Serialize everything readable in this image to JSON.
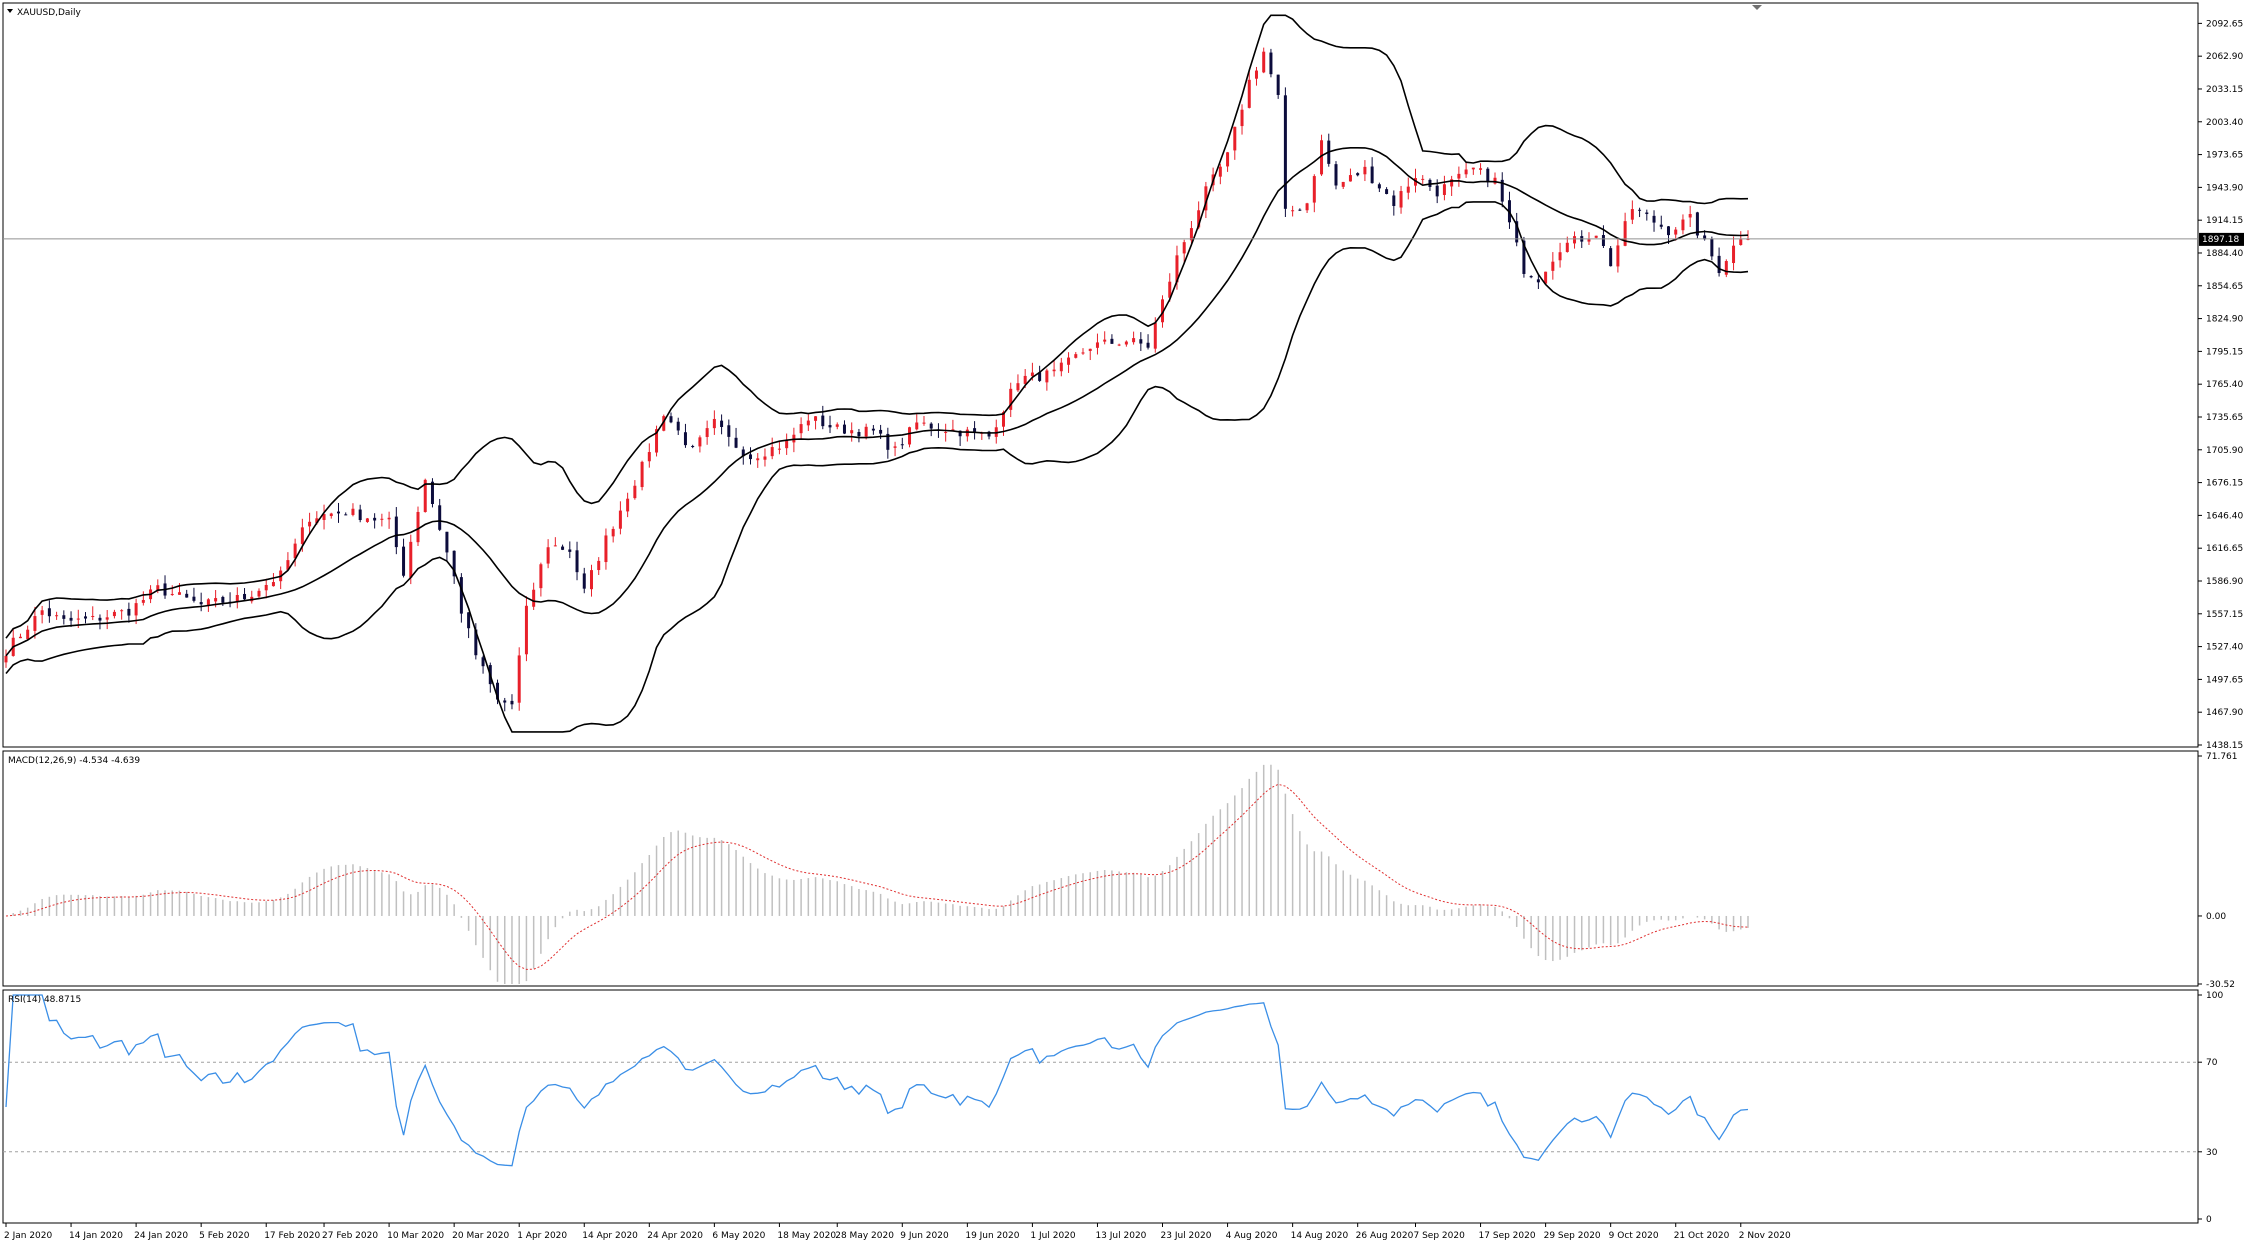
{
  "window": {
    "title": "XAUUSD,Daily",
    "current_price_label": "1897.18",
    "current_price": 1897.18
  },
  "colors": {
    "bull_candle": "#e8202a",
    "bear_candle": "#0c0c3c",
    "bands": "#000000",
    "macd_hist": "#c0c0c0",
    "macd_signal": "#e03030",
    "rsi_line": "#3a8ee6",
    "levels": "#a0a0a0"
  },
  "price_axis": {
    "ticks": [
      "2092.65",
      "2062.90",
      "2033.15",
      "2003.40",
      "1973.65",
      "1943.90",
      "1914.15",
      "1884.40",
      "1854.65",
      "1824.90",
      "1795.15",
      "1765.40",
      "1735.65",
      "1705.90",
      "1676.15",
      "1646.40",
      "1616.65",
      "1586.90",
      "1557.15",
      "1527.40",
      "1497.65",
      "1467.90",
      "1438.15"
    ]
  },
  "macd_panel": {
    "label": "MACD(12,26,9) -4.534 -4.639",
    "ticks": [
      "71.761",
      "0.00",
      "-30.52"
    ]
  },
  "rsi_panel": {
    "label": "RSI(14) 48.8715",
    "ticks": [
      "100",
      "70",
      "30",
      "0"
    ]
  },
  "date_axis": {
    "labels": [
      "2 Jan 2020",
      "14 Jan 2020",
      "24 Jan 2020",
      "5 Feb 2020",
      "17 Feb 2020",
      "27 Feb 2020",
      "10 Mar 2020",
      "20 Mar 2020",
      "1 Apr 2020",
      "14 Apr 2020",
      "24 Apr 2020",
      "6 May 2020",
      "18 May 2020",
      "28 May 2020",
      "9 Jun 2020",
      "19 Jun 2020",
      "1 Jul 2020",
      "13 Jul 2020",
      "23 Jul 2020",
      "4 Aug 2020",
      "14 Aug 2020",
      "26 Aug 2020",
      "7 Sep 2020",
      "17 Sep 2020",
      "29 Sep 2020",
      "9 Oct 2020",
      "21 Oct 2020",
      "2 Nov 2020"
    ]
  },
  "chart_data": [
    {
      "type": "candlestick",
      "title": "XAUUSD,Daily",
      "ylim": [
        1438.15,
        2107.5
      ],
      "close_path": [
        [
          0,
          1524
        ],
        [
          5,
          1560
        ],
        [
          8,
          1550
        ],
        [
          12,
          1552
        ],
        [
          17,
          1560
        ],
        [
          21,
          1580
        ],
        [
          27,
          1565
        ],
        [
          33,
          1572
        ],
        [
          38,
          1592
        ],
        [
          42,
          1645
        ],
        [
          47,
          1650
        ],
        [
          53,
          1640
        ],
        [
          55,
          1595
        ],
        [
          58,
          1680
        ],
        [
          62,
          1590
        ],
        [
          63,
          1560
        ],
        [
          65,
          1520
        ],
        [
          68,
          1478
        ],
        [
          70,
          1475
        ],
        [
          72,
          1560
        ],
        [
          75,
          1620
        ],
        [
          78,
          1615
        ],
        [
          80,
          1577
        ],
        [
          83,
          1625
        ],
        [
          86,
          1665
        ],
        [
          88,
          1690
        ],
        [
          91,
          1740
        ],
        [
          95,
          1705
        ],
        [
          98,
          1730
        ],
        [
          100,
          1715
        ],
        [
          103,
          1700
        ],
        [
          108,
          1712
        ],
        [
          111,
          1735
        ],
        [
          115,
          1725
        ],
        [
          120,
          1722
        ],
        [
          123,
          1705
        ],
        [
          126,
          1730
        ],
        [
          130,
          1725
        ],
        [
          136,
          1718
        ],
        [
          140,
          1770
        ],
        [
          145,
          1775
        ],
        [
          150,
          1800
        ],
        [
          155,
          1805
        ],
        [
          158,
          1800
        ],
        [
          162,
          1880
        ],
        [
          166,
          1940
        ],
        [
          169,
          1972
        ],
        [
          172,
          2040
        ],
        [
          174,
          2067
        ],
        [
          176,
          2025
        ],
        [
          177,
          1920
        ],
        [
          180,
          1930
        ],
        [
          182,
          1985
        ],
        [
          184,
          1945
        ],
        [
          188,
          1960
        ],
        [
          192,
          1930
        ],
        [
          195,
          1955
        ],
        [
          198,
          1940
        ],
        [
          203,
          1960
        ],
        [
          206,
          1950
        ],
        [
          209,
          1890
        ],
        [
          210,
          1870
        ],
        [
          212,
          1862
        ],
        [
          215,
          1890
        ],
        [
          220,
          1903
        ],
        [
          222,
          1875
        ],
        [
          225,
          1925
        ],
        [
          230,
          1905
        ],
        [
          233,
          1915
        ],
        [
          237,
          1870
        ],
        [
          240,
          1900
        ],
        [
          241,
          1897
        ]
      ],
      "bands": {
        "period": 20,
        "upper_extreme": 2100,
        "lower_extreme": 1450
      }
    },
    {
      "type": "macd",
      "title": "MACD(12,26,9) -4.534 -4.639",
      "macd": -4.534,
      "signal": -4.639,
      "ylim": [
        -30.52,
        71.761
      ]
    },
    {
      "type": "line",
      "title": "RSI(14) 48.8715",
      "last": 48.8715,
      "ylim": [
        0,
        100
      ],
      "levels": [
        70,
        30
      ]
    }
  ]
}
